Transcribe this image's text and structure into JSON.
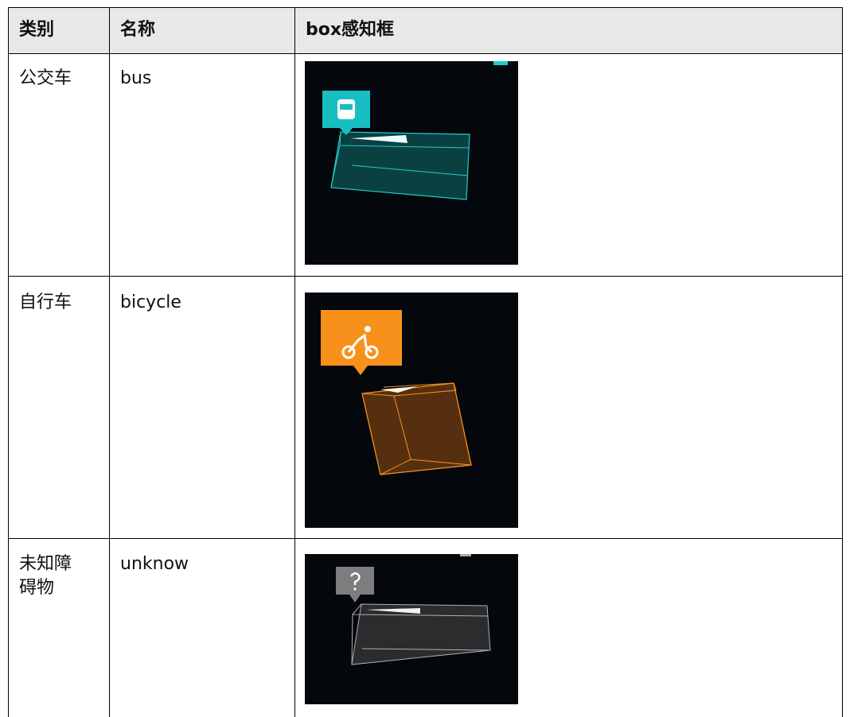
{
  "table": {
    "header": [
      "类别",
      "名称",
      "box感知框"
    ],
    "rows": [
      [
        "公交车",
        "bus"
      ],
      [
        "自行车",
        "bicycle"
      ],
      [
        "未知障碍物",
        "unknow"
      ]
    ]
  }
}
